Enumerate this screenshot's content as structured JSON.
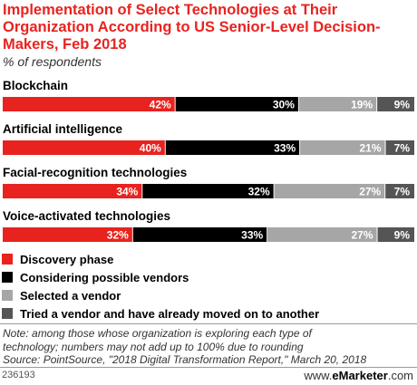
{
  "title": "Implementation of Select Technologies at Their Organization According to US Senior-Level Decision-Makers, Feb 2018",
  "subtitle": "% of respondents",
  "chart_data": {
    "type": "bar",
    "orientation": "horizontal",
    "stacked": true,
    "categories": [
      "Blockchain",
      "Artificial intelligence",
      "Facial-recognition technologies",
      "Voice-activated technologies"
    ],
    "series": [
      {
        "name": "Discovery phase",
        "values": [
          42,
          40,
          34,
          32
        ],
        "color": "#e8231f"
      },
      {
        "name": "Considering possible vendors",
        "values": [
          30,
          33,
          32,
          33
        ],
        "color": "#000000"
      },
      {
        "name": "Selected a vendor",
        "values": [
          19,
          21,
          27,
          27
        ],
        "color": "#a6a6a6"
      },
      {
        "name": "Tried a vendor and have already moved on to another",
        "values": [
          9,
          7,
          7,
          9
        ],
        "color": "#555555"
      }
    ],
    "value_suffix": "%",
    "legend_position": "bottom-left",
    "grid": false
  },
  "note": [
    "Note: among those whose organization is exploring each type of",
    "technology; numbers may not add up to 100% due to rounding",
    "Source: PointSource, \"2018 Digital Transformation Report,\" March 20, 2018"
  ],
  "chart_id": "236193",
  "brand": {
    "prefix": "www.",
    "name": "eMarketer",
    "suffix": ".com"
  }
}
